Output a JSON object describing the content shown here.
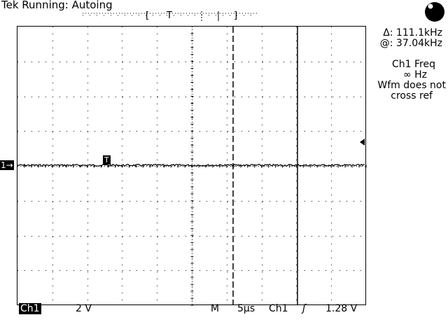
{
  "header": {
    "title": "Tek Running: Autoing",
    "trigger_bracket_left": "[",
    "trigger_bracket_T": "T",
    "trigger_bracket_right": "]"
  },
  "status_icon": "record-indicator-icon",
  "measurements": {
    "delta": "Δ: 111.1kHz",
    "at": "@: 37.04kHz",
    "ch1_freq_label": "Ch1 Freq",
    "ch1_freq_value": "∞ Hz",
    "note_line1": "Wfm does not",
    "note_line2": "cross ref"
  },
  "markers": {
    "channel_marker": "1→",
    "trigger_marker": "T"
  },
  "footer": {
    "channel": "Ch1",
    "volts_div": "2 V",
    "mode": "M",
    "time_div": "5µs",
    "trigger_source": "Ch1",
    "trigger_slope": "ʃ",
    "trigger_level": "1.28 V"
  },
  "colors": {
    "screen_bg": "#ffffff",
    "trace": "#000000"
  }
}
